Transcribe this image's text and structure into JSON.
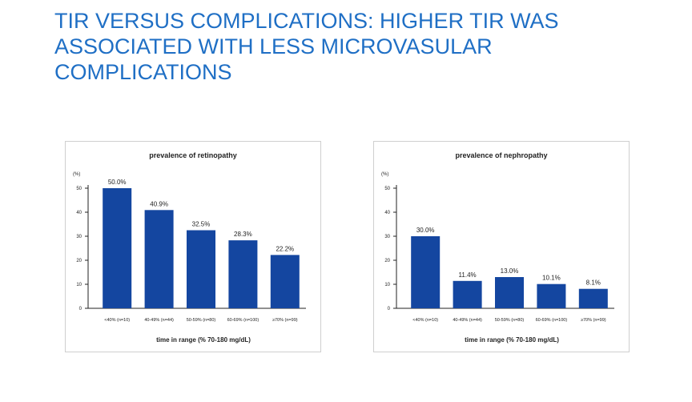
{
  "slide": {
    "title": "TIR VERSUS COMPLICATIONS: HIGHER TIR WAS ASSOCIATED WITH LESS MICROVASULAR COMPLICATIONS"
  },
  "chart_data": [
    {
      "type": "bar",
      "title": "prevalence of retinopathy",
      "xlabel": "time in range (% 70-180 mg/dL)",
      "ylabel": "(%)",
      "categories": [
        "<40% (n=10)",
        "40-49% (n=44)",
        "50-59% (n=80)",
        "60-69% (n=100)",
        "≥70% (n=99)"
      ],
      "values": [
        50.0,
        40.9,
        32.5,
        28.3,
        22.2
      ],
      "data_labels": [
        "50.0%",
        "40.9%",
        "32.5%",
        "28.3%",
        "22.2%"
      ],
      "ylim": [
        0,
        50
      ],
      "yticks": [
        0,
        10,
        20,
        30,
        40,
        50
      ],
      "bar_color": "#1446a0",
      "grid": false
    },
    {
      "type": "bar",
      "title": "prevalence of nephropathy",
      "xlabel": "time in range (% 70-180 mg/dL)",
      "ylabel": "(%)",
      "categories": [
        "<40% (n=10)",
        "40-49% (n=44)",
        "50-59% (n=80)",
        "60-69% (n=100)",
        "≥70% (n=99)"
      ],
      "values": [
        30.0,
        11.4,
        13.0,
        10.1,
        8.1
      ],
      "data_labels": [
        "30.0%",
        "11.4%",
        "13.0%",
        "10.1%",
        "8.1%"
      ],
      "ylim": [
        0,
        50
      ],
      "yticks": [
        0,
        10,
        20,
        30,
        40,
        50
      ],
      "bar_color": "#1446a0",
      "grid": false
    }
  ]
}
